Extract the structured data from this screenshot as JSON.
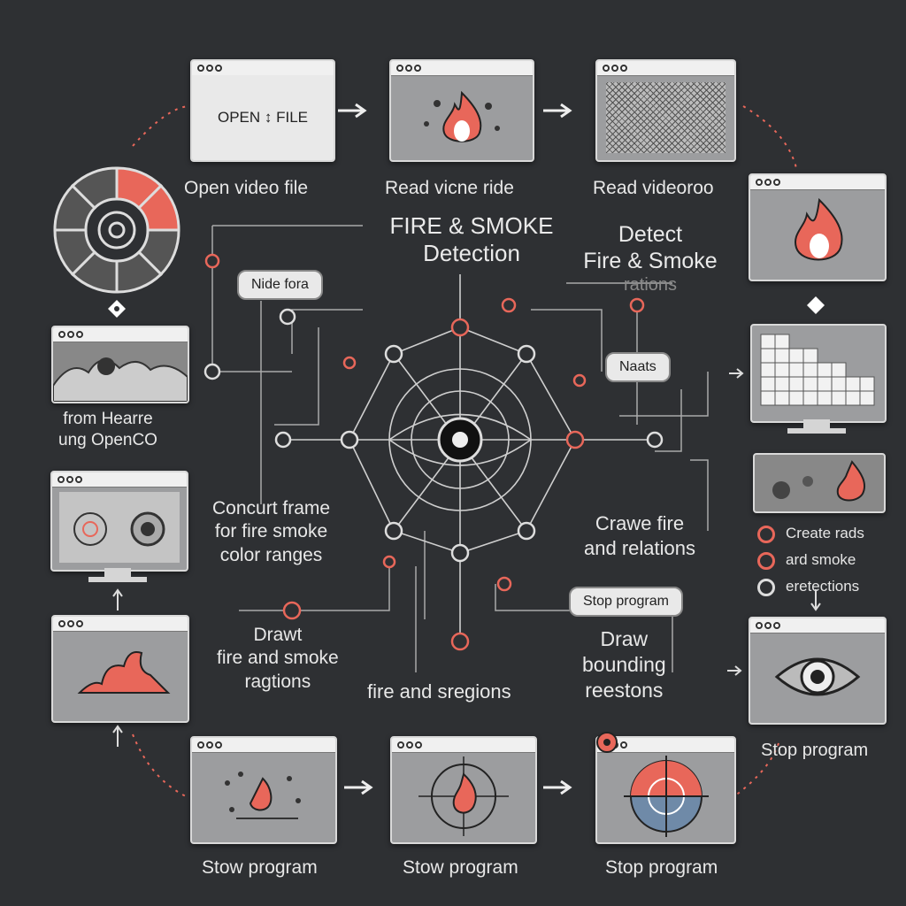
{
  "center": {
    "title_line1": "FIRE & SMOKE",
    "title_line2": "Detection",
    "right_title_line1": "Detect",
    "right_title_line2": "Fire & Smoke",
    "right_title_line3": "rations"
  },
  "steps": {
    "open_file_button": "OPEN ↕ FILE",
    "open_video": "Open video file",
    "read_video": "Read vicne ride",
    "read_video2": "Read videoroo",
    "from_line1": "from Hearre",
    "from_line2": "ung OpenCO",
    "convert_line1": "Concurt frame",
    "convert_line2": "for fire smoke",
    "convert_line3": "color ranges",
    "draw_line1": "Drawt",
    "draw_line2": "fire and smoke",
    "draw_line3": "ragtions",
    "fire_regions": "fire and sregions",
    "crawe_line1": "Crawe fire",
    "crawe_line2": "and relations",
    "draw_bb_line1": "Draw",
    "draw_bb_line2": "bounding",
    "draw_bb_line3": "reestons",
    "create_1": "Create rads",
    "create_2": "ard smoke",
    "create_3": "eretections",
    "stop_right": "Stop program",
    "stow_1": "Stow program",
    "stow_2": "Stow program",
    "stop_bottom": "Stop program"
  },
  "pills": {
    "nide": "Nide fora",
    "naats": "Naats",
    "stop_program": "Stop program"
  },
  "colors": {
    "accent": "#e8675a",
    "background": "#2e3033",
    "panel": "#9c9d9f"
  }
}
